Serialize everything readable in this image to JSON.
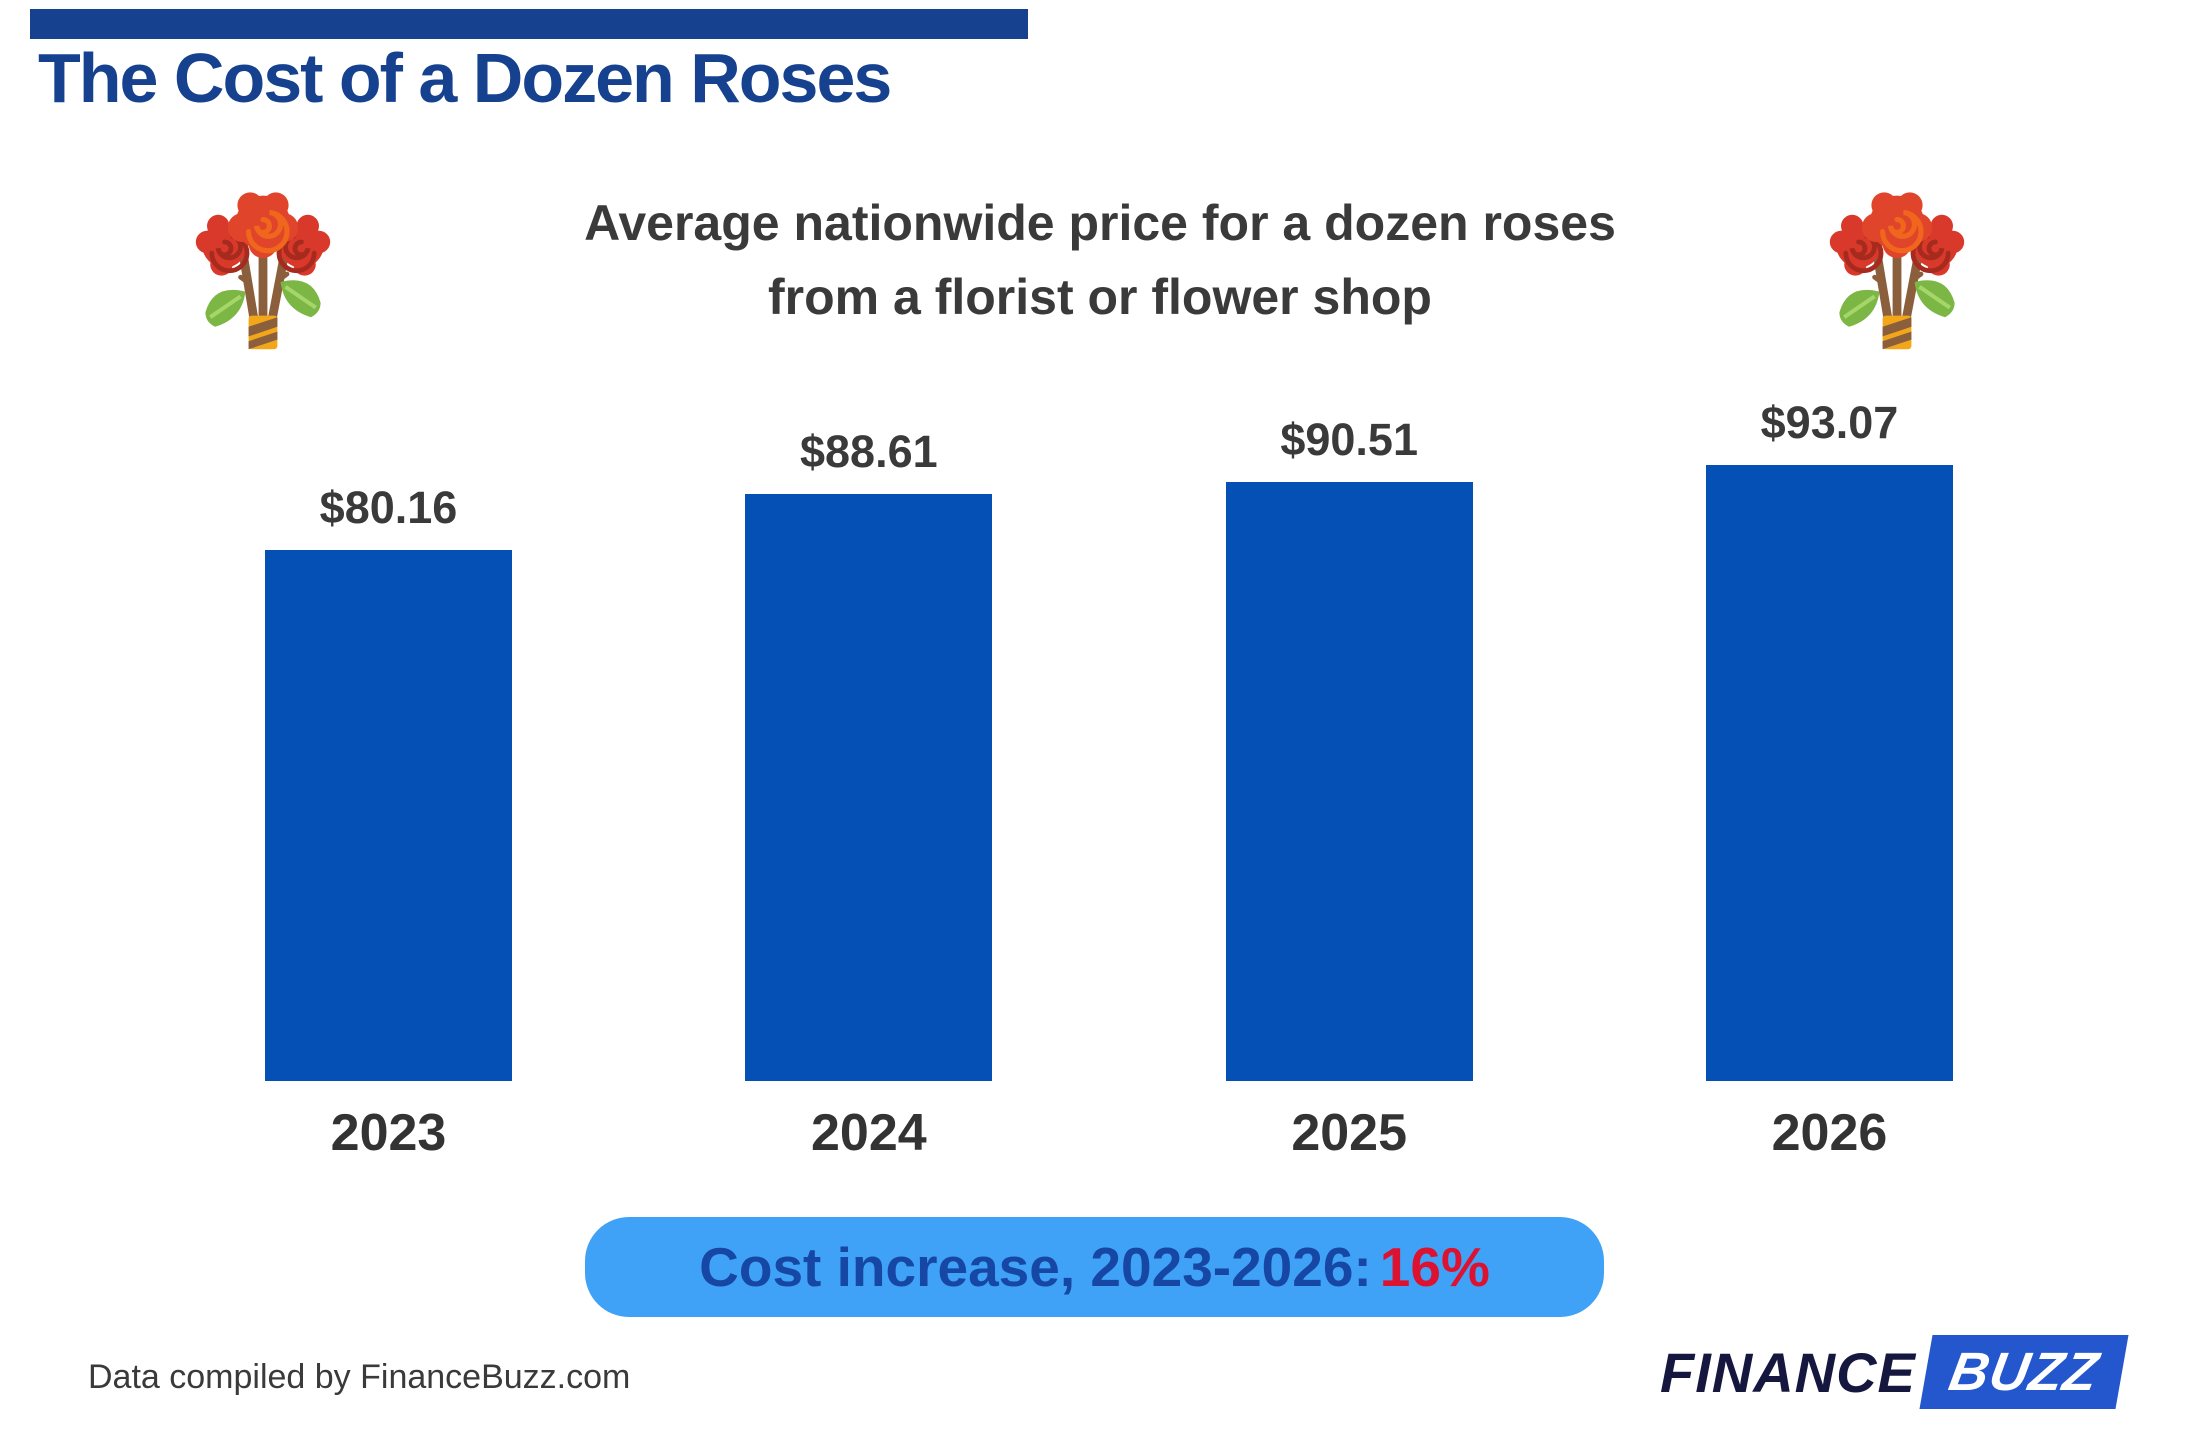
{
  "header": {
    "title": "The Cost of a Dozen Roses",
    "subtitle_line1": "Average nationwide price for a dozen roses",
    "subtitle_line2": "from a florist or flower shop"
  },
  "decor": {
    "left_icon": "rose-bouquet-emoji",
    "right_icon": "rose-bouquet-emoji"
  },
  "chart_data": {
    "type": "bar",
    "categories": [
      "2023",
      "2024",
      "2025",
      "2026"
    ],
    "values": [
      80.16,
      88.61,
      90.51,
      93.07
    ],
    "value_labels": [
      "$80.16",
      "$88.61",
      "$90.51",
      "$93.07"
    ],
    "title": "Average nationwide price for a dozen roses from a florist or flower shop",
    "xlabel": "",
    "ylabel": "",
    "ylim": [
      0,
      100
    ],
    "grid": false,
    "legend": false,
    "axes_hidden": true,
    "bar_color": "#0450B4"
  },
  "callout": {
    "label": "Cost increase, 2023-2026:",
    "value": "16%",
    "bg_color": "#3FA2F7",
    "label_color": "#1747A5",
    "value_color": "#DD1230"
  },
  "footer": {
    "source": "Data compiled by FinanceBuzz.com",
    "logo_finance": "FINANCE",
    "logo_buzz": "BUZZ"
  },
  "colors": {
    "accent_navy": "#16418E",
    "bar_blue": "#0450B4",
    "text_dark": "#3A3A3A"
  }
}
